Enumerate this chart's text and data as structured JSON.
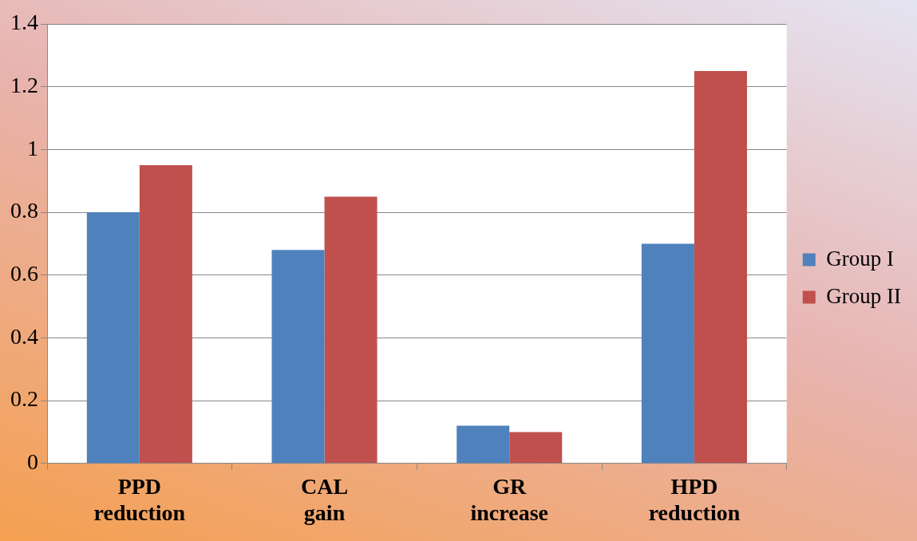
{
  "chart_data": {
    "type": "bar",
    "categories": [
      "PPD reduction",
      "CAL gain",
      "GR increase",
      "HPD reduction"
    ],
    "series": [
      {
        "name": "Group I",
        "color": "#4f81bd",
        "values": [
          0.8,
          0.68,
          0.12,
          0.7
        ]
      },
      {
        "name": "Group II",
        "color": "#c0504d",
        "values": [
          0.95,
          0.85,
          0.1,
          1.25
        ]
      }
    ],
    "ylim": [
      0,
      1.4
    ],
    "yticks": [
      0,
      0.2,
      0.4,
      0.6,
      0.8,
      1,
      1.2,
      1.4
    ],
    "grid": "y",
    "legend": "right"
  }
}
